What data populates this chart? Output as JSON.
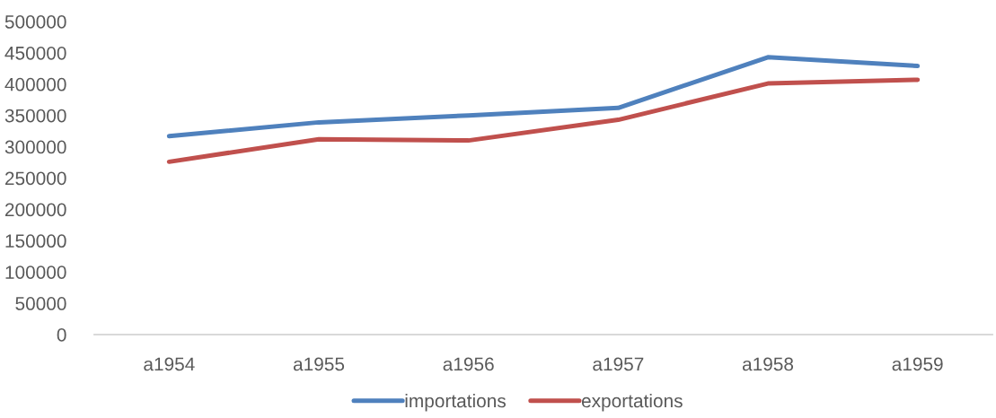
{
  "chart_data": {
    "type": "line",
    "categories": [
      "a1954",
      "a1955",
      "a1956",
      "a1957",
      "a1958",
      "a1959"
    ],
    "series": [
      {
        "name": "importations",
        "color": "#4f81bd",
        "values": [
          317000,
          339000,
          350000,
          362000,
          443000,
          429000
        ]
      },
      {
        "name": "exportations",
        "color": "#c0504d",
        "values": [
          276000,
          312000,
          310000,
          343000,
          401000,
          407000
        ]
      }
    ],
    "ylim": [
      0,
      500000
    ],
    "yticks": [
      0,
      50000,
      100000,
      150000,
      200000,
      250000,
      300000,
      350000,
      400000,
      450000,
      500000
    ],
    "legend": "bottom",
    "grid": false,
    "marker": "none",
    "line_style": "solid"
  }
}
